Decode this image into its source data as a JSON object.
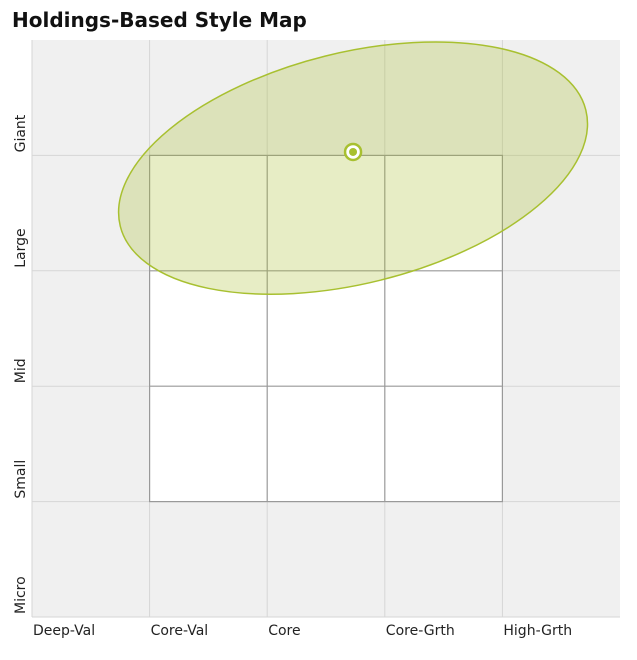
{
  "chart_data": {
    "type": "stylemap",
    "title": "Holdings-Based Style Map",
    "xlim": [
      0,
      5
    ],
    "ylim": [
      0,
      5
    ],
    "xticks": [
      {
        "value": 0,
        "label": "Deep-Val"
      },
      {
        "value": 1,
        "label": "Core-Val"
      },
      {
        "value": 2,
        "label": "Core"
      },
      {
        "value": 3,
        "label": "Core-Grth"
      },
      {
        "value": 4,
        "label": "High-Grth"
      }
    ],
    "yticks": [
      {
        "value": 0,
        "label": "Micro"
      },
      {
        "value": 1,
        "label": "Small"
      },
      {
        "value": 2,
        "label": "Mid"
      },
      {
        "value": 3,
        "label": "Large"
      },
      {
        "value": 4,
        "label": "Giant"
      }
    ],
    "grid": true,
    "color": "#a8c030",
    "point": {
      "x": 2.73,
      "y": 4.03
    },
    "ellipse": {
      "x": 2.73,
      "y": 3.89,
      "rx": 2.04,
      "ry": 1.0,
      "angle": -14
    }
  }
}
